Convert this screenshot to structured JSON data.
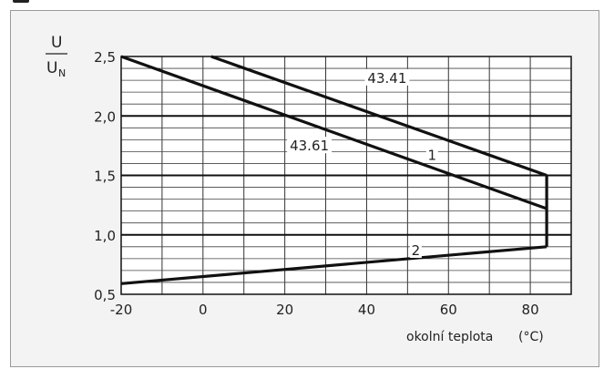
{
  "chart_data": {
    "type": "line",
    "xlabel": "okolní teplota",
    "xunit": "(°C)",
    "ylabel": {
      "numerator": "U",
      "denominator": "U",
      "denominator_subscript": "N"
    },
    "xlim": [
      -20,
      90
    ],
    "ylim": [
      0.5,
      2.5
    ],
    "x_ticks": [
      -20,
      0,
      20,
      40,
      60,
      80
    ],
    "x_tick_labels": [
      "-20",
      "0",
      "20",
      "40",
      "60",
      "80"
    ],
    "y_major_ticks": [
      0.5,
      1.0,
      1.5,
      2.0,
      2.5
    ],
    "y_tick_labels": [
      "0,5",
      "1,0",
      "1,5",
      "2,0",
      "2,5"
    ],
    "y_minor_step": 0.1,
    "grid": true,
    "series": [
      {
        "name": "43.41",
        "x": [
          2,
          84
        ],
        "y": [
          2.5,
          1.5
        ]
      },
      {
        "name": "43.61",
        "x": [
          -20,
          84
        ],
        "y": [
          2.5,
          1.22
        ]
      },
      {
        "name": "",
        "x": [
          84,
          84,
          84
        ],
        "y": [
          1.5,
          1.22,
          0.9
        ]
      },
      {
        "name": "",
        "x": [
          -20,
          84
        ],
        "y": [
          0.59,
          0.9
        ]
      }
    ],
    "annotations": [
      {
        "text": "43.41",
        "x": 45,
        "y": 2.31
      },
      {
        "text": "43.61",
        "x": 26,
        "y": 1.74
      },
      {
        "text": "1",
        "x": 56,
        "y": 1.66
      },
      {
        "text": "2",
        "x": 52,
        "y": 0.86
      }
    ]
  }
}
